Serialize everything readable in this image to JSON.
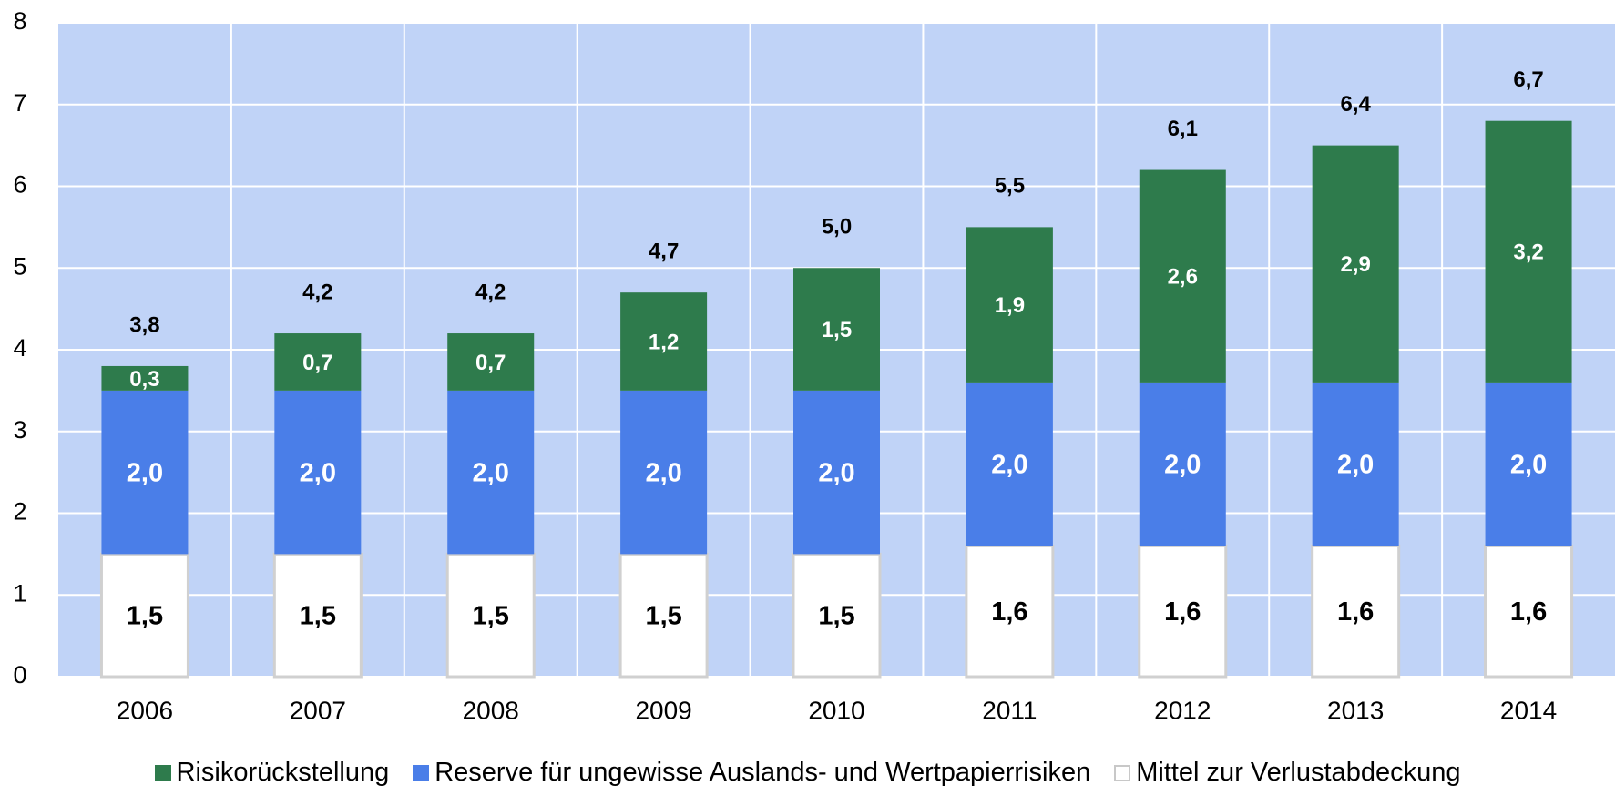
{
  "chart_data": {
    "type": "stacked_bar",
    "categories": [
      "2006",
      "2007",
      "2008",
      "2009",
      "2010",
      "2011",
      "2012",
      "2013",
      "2014"
    ],
    "series": [
      {
        "name": "Risikorückstellung",
        "color": "#2e7b4c",
        "values": [
          0.3,
          0.7,
          0.7,
          1.2,
          1.5,
          1.9,
          2.6,
          2.9,
          3.2
        ],
        "value_labels": [
          "0,3",
          "0,7",
          "0,7",
          "1,2",
          "1,5",
          "1,9",
          "2,6",
          "2,9",
          "3,2"
        ]
      },
      {
        "name": "Reserve für ungewisse Auslands- und Wertpapierrisiken",
        "color": "#4a7ee8",
        "values": [
          2.0,
          2.0,
          2.0,
          2.0,
          2.0,
          2.0,
          2.0,
          2.0,
          2.0
        ],
        "value_labels": [
          "2,0",
          "2,0",
          "2,0",
          "2,0",
          "2,0",
          "2,0",
          "2,0",
          "2,0",
          "2,0"
        ]
      },
      {
        "name": "Mittel zur Verlustabdeckung",
        "color": "#ffffff",
        "values": [
          1.5,
          1.5,
          1.5,
          1.5,
          1.5,
          1.6,
          1.6,
          1.6,
          1.6
        ],
        "value_labels": [
          "1,5",
          "1,5",
          "1,5",
          "1,5",
          "1,5",
          "1,6",
          "1,6",
          "1,6",
          "1,6"
        ]
      }
    ],
    "totals": [
      3.8,
      4.2,
      4.2,
      4.7,
      5.0,
      5.5,
      6.1,
      6.4,
      6.7
    ],
    "total_labels": [
      "3,8",
      "4,2",
      "4,2",
      "4,7",
      "5,0",
      "5,5",
      "6,1",
      "6,4",
      "6,7"
    ],
    "ylim": [
      0,
      8
    ],
    "yticks": [
      0,
      1,
      2,
      3,
      4,
      5,
      6,
      7,
      8
    ],
    "grid": true
  }
}
